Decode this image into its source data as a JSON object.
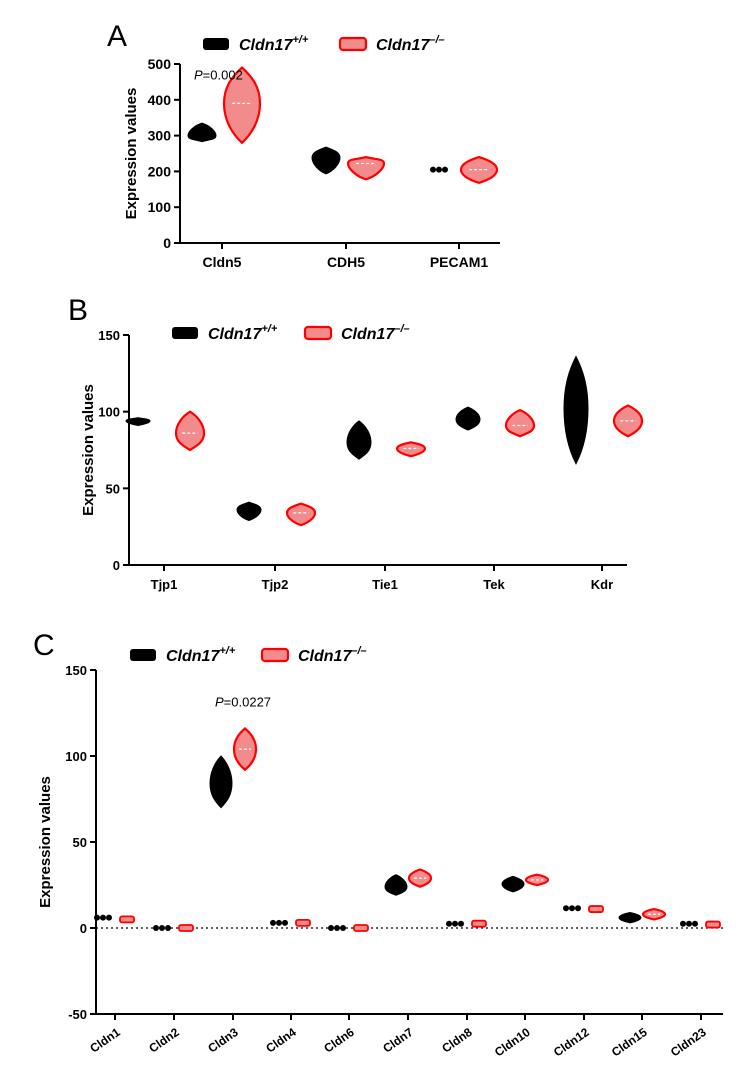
{
  "legend": {
    "wt_label": "Cldn17",
    "wt_sup": "+/+",
    "ko_label": "Cldn17",
    "ko_sup": "–/–"
  },
  "colors": {
    "wt": "#000000",
    "ko": "#ff0000",
    "ko_fill": "#f28b8b"
  },
  "chart_data": [
    {
      "panel": "A",
      "type": "violin",
      "ylabel": "Expression values",
      "ylim": [
        0,
        500
      ],
      "yticks": [
        0,
        100,
        200,
        300,
        400,
        500
      ],
      "categories": [
        "Cldn5",
        "CDH5",
        "PECAM1"
      ],
      "annotation": {
        "category": "Cldn5",
        "p_label": "P",
        "p_value": "=0.002"
      },
      "series": [
        {
          "name": "Cldn17+/+",
          "groups": [
            {
              "min": 283,
              "median": 300,
              "max": 335
            },
            {
              "min": 193,
              "median": 238,
              "max": 268
            },
            {
              "min": 203,
              "median": 205,
              "max": 208
            }
          ]
        },
        {
          "name": "Cldn17–/–",
          "groups": [
            {
              "min": 280,
              "median": 390,
              "max": 490
            },
            {
              "min": 178,
              "median": 222,
              "max": 240
            },
            {
              "min": 168,
              "median": 205,
              "max": 240
            }
          ]
        }
      ]
    },
    {
      "panel": "B",
      "type": "violin",
      "ylabel": "Expression values",
      "ylim": [
        0,
        150
      ],
      "yticks": [
        0,
        50,
        100,
        150
      ],
      "categories": [
        "Tjp1",
        "Tjp2",
        "Tie1",
        "Tek",
        "Kdr"
      ],
      "series": [
        {
          "name": "Cldn17+/+",
          "groups": [
            {
              "min": 91,
              "median": 94,
              "max": 96
            },
            {
              "min": 29,
              "median": 36,
              "max": 41
            },
            {
              "min": 69,
              "median": 80,
              "max": 94
            },
            {
              "min": 88,
              "median": 95,
              "max": 103
            },
            {
              "min": 66,
              "median": 102,
              "max": 136
            }
          ]
        },
        {
          "name": "Cldn17–/–",
          "groups": [
            {
              "min": 75,
              "median": 86,
              "max": 100
            },
            {
              "min": 26,
              "median": 34,
              "max": 40
            },
            {
              "min": 71,
              "median": 76,
              "max": 80
            },
            {
              "min": 84,
              "median": 91,
              "max": 101
            },
            {
              "min": 84,
              "median": 94,
              "max": 104
            }
          ]
        }
      ]
    },
    {
      "panel": "C",
      "type": "violin",
      "ylabel": "Expression values",
      "ylim": [
        -50,
        150
      ],
      "yticks": [
        -50,
        0,
        50,
        100,
        150
      ],
      "zero_line": "dotted",
      "categories": [
        "Cldn1",
        "Cldn2",
        "Cldn3",
        "Cldn4",
        "Cldn6",
        "Cldn7",
        "Cldn8",
        "Cldn10",
        "Cldn12",
        "Cldn15",
        "Cldn23"
      ],
      "annotation": {
        "category": "Cldn3",
        "p_label": "P",
        "p_value": "=0.0227"
      },
      "series": [
        {
          "name": "Cldn17+/+",
          "groups": [
            {
              "min": 5,
              "median": 6,
              "max": 7
            },
            {
              "min": 0,
              "median": 0,
              "max": 0.5
            },
            {
              "min": 70,
              "median": 84,
              "max": 100
            },
            {
              "min": 2,
              "median": 3,
              "max": 4
            },
            {
              "min": 0,
              "median": 0,
              "max": 0.5
            },
            {
              "min": 19,
              "median": 24,
              "max": 31
            },
            {
              "min": 1.5,
              "median": 2.5,
              "max": 3.5
            },
            {
              "min": 21,
              "median": 25.5,
              "max": 30
            },
            {
              "min": 11,
              "median": 11.5,
              "max": 12
            },
            {
              "min": 3,
              "median": 6,
              "max": 9
            },
            {
              "min": 1.5,
              "median": 2.5,
              "max": 3.5
            }
          ]
        },
        {
          "name": "Cldn17–/–",
          "groups": [
            {
              "min": 4,
              "median": 5,
              "max": 6.5
            },
            {
              "min": 0,
              "median": 0,
              "max": 0.5
            },
            {
              "min": 92,
              "median": 104,
              "max": 116
            },
            {
              "min": 2,
              "median": 3,
              "max": 4
            },
            {
              "min": 0,
              "median": 0,
              "max": 0.5
            },
            {
              "min": 24,
              "median": 29,
              "max": 34
            },
            {
              "min": 1,
              "median": 2.5,
              "max": 4
            },
            {
              "min": 25,
              "median": 28,
              "max": 31
            },
            {
              "min": 10,
              "median": 11,
              "max": 12
            },
            {
              "min": 5,
              "median": 8,
              "max": 11
            },
            {
              "min": 1.5,
              "median": 2,
              "max": 3
            }
          ]
        }
      ]
    }
  ],
  "panels": {
    "A": {
      "letter": "A"
    },
    "B": {
      "letter": "B"
    },
    "C": {
      "letter": "C"
    }
  }
}
